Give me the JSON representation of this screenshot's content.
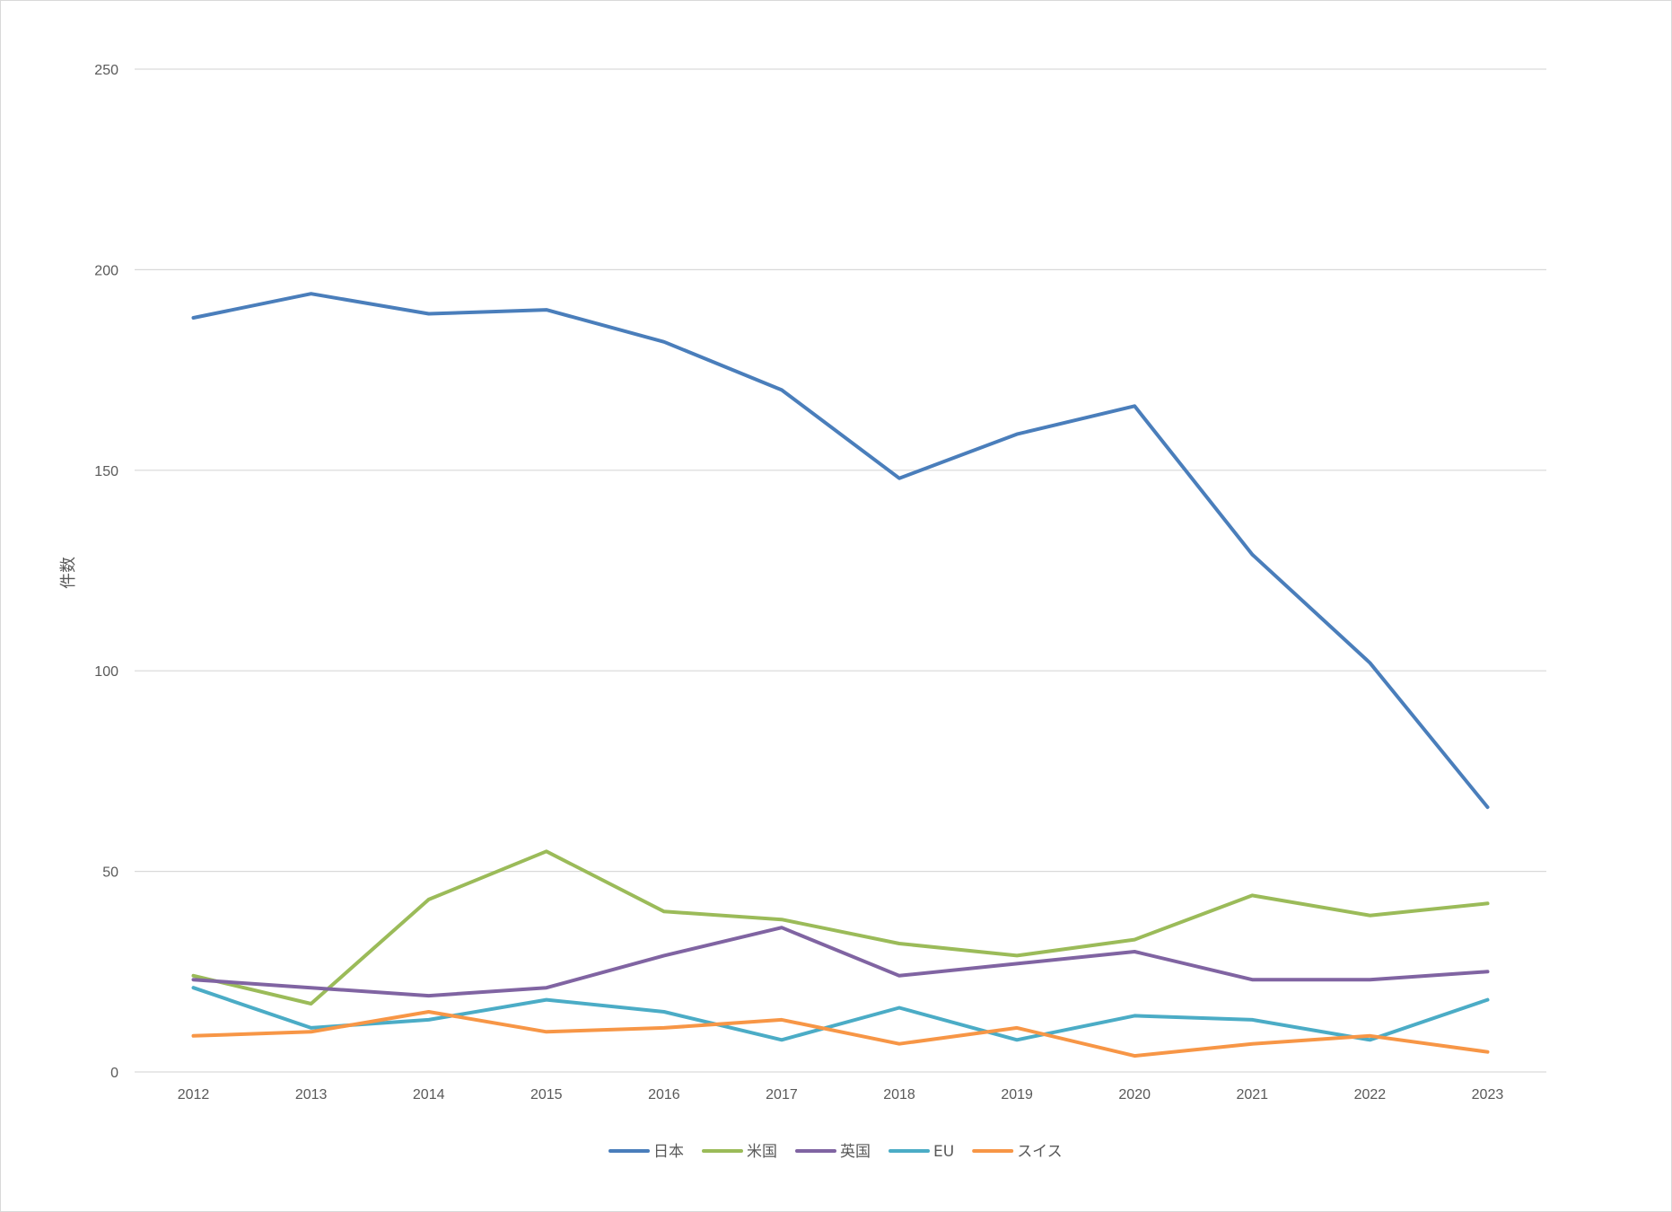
{
  "chart_data": {
    "type": "line",
    "title": "",
    "xlabel": "",
    "ylabel": "件数",
    "ylim": [
      0,
      250
    ],
    "yticks": [
      0,
      50,
      100,
      150,
      200,
      250
    ],
    "grid": true,
    "legend_position": "bottom",
    "categories": [
      "2012",
      "2013",
      "2014",
      "2015",
      "2016",
      "2017",
      "2018",
      "2019",
      "2020",
      "2021",
      "2022",
      "2023"
    ],
    "series": [
      {
        "name": "日本",
        "color": "#4a7ebb",
        "values": [
          188,
          194,
          189,
          190,
          182,
          170,
          148,
          159,
          166,
          129,
          102,
          66
        ]
      },
      {
        "name": "米国",
        "color": "#9bbb59",
        "values": [
          24,
          17,
          43,
          55,
          40,
          38,
          32,
          29,
          33,
          44,
          39,
          42
        ]
      },
      {
        "name": "英国",
        "color": "#8064a2",
        "values": [
          23,
          21,
          19,
          21,
          29,
          36,
          24,
          27,
          30,
          23,
          23,
          25
        ]
      },
      {
        "name": "EU",
        "color": "#4bacc6",
        "values": [
          21,
          11,
          13,
          18,
          15,
          8,
          16,
          8,
          14,
          13,
          8,
          18
        ]
      },
      {
        "name": "スイス",
        "color": "#f79646",
        "values": [
          9,
          10,
          15,
          10,
          11,
          13,
          7,
          11,
          4,
          7,
          9,
          5
        ]
      }
    ]
  }
}
